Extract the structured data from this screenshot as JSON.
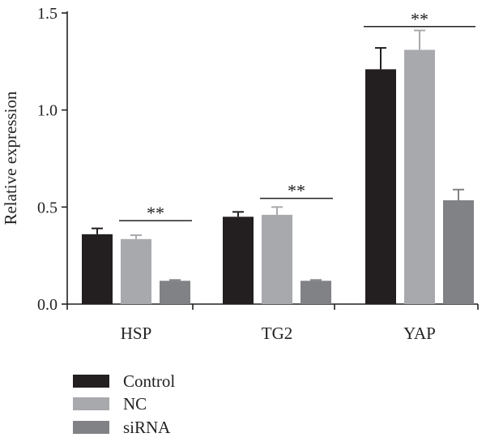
{
  "chart_data": {
    "type": "bar",
    "categories": [
      "HSP",
      "TG2",
      "YAP"
    ],
    "series": [
      {
        "name": "Control",
        "values": [
          0.36,
          0.45,
          1.21
        ],
        "errors": [
          0.03,
          0.025,
          0.11
        ],
        "color": "#231f20"
      },
      {
        "name": "NC",
        "values": [
          0.335,
          0.46,
          1.31
        ],
        "errors": [
          0.02,
          0.04,
          0.1
        ],
        "color": "#a7a9ac"
      },
      {
        "name": "siRNA",
        "values": [
          0.12,
          0.12,
          0.535
        ],
        "errors": [
          0.004,
          0.004,
          0.055
        ],
        "color": "#808285"
      }
    ],
    "ylabel": "Relative expression",
    "ylim": [
      0,
      1.5
    ],
    "yticks": [
      "0.0",
      "0.5",
      "1.0",
      "1.5"
    ],
    "grid": false,
    "legend_position": "bottom-left",
    "significance": [
      {
        "category": "HSP",
        "from_series": 1,
        "to_series": 2,
        "label": "**",
        "y": 0.43
      },
      {
        "category": "TG2",
        "from_series": 1,
        "to_series": 2,
        "label": "**",
        "y": 0.545
      },
      {
        "category": "YAP",
        "from_series": 0,
        "to_series": 2,
        "label": "**",
        "y": 1.43
      }
    ]
  }
}
